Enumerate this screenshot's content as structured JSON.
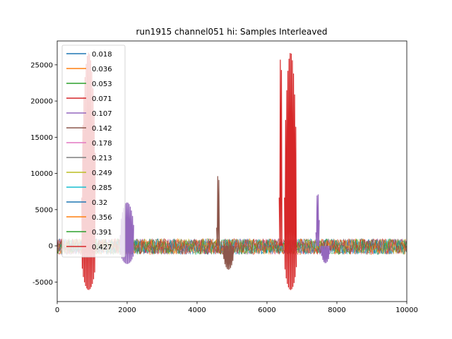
{
  "chart_data": {
    "type": "line",
    "title": "run1915 channel051 hi: Samples Interleaved",
    "xlabel": "",
    "ylabel": "",
    "xlim": [
      0,
      10000
    ],
    "ylim": [
      -7700,
      28300
    ],
    "xticks": [
      0,
      2000,
      4000,
      6000,
      8000,
      10000
    ],
    "yticks": [
      -5000,
      0,
      5000,
      10000,
      15000,
      20000,
      25000
    ],
    "grid": false,
    "legend_placement": "upper-left",
    "noise_band": [
      -1200,
      1000
    ],
    "series": [
      {
        "name": "0.018",
        "color": "#1f77b4"
      },
      {
        "name": "0.036",
        "color": "#ff7f0e"
      },
      {
        "name": "0.053",
        "color": "#2ca02c"
      },
      {
        "name": "0.071",
        "color": "#d62728"
      },
      {
        "name": "0.107",
        "color": "#9467bd"
      },
      {
        "name": "0.142",
        "color": "#8c564b"
      },
      {
        "name": "0.178",
        "color": "#e377c2"
      },
      {
        "name": "0.213",
        "color": "#7f7f7f"
      },
      {
        "name": "0.249",
        "color": "#bcbd22"
      },
      {
        "name": "0.285",
        "color": "#17becf"
      },
      {
        "name": "0.32",
        "color": "#1f77b4"
      },
      {
        "name": "0.356",
        "color": "#ff7f0e"
      },
      {
        "name": "0.391",
        "color": "#2ca02c"
      },
      {
        "name": "0.427",
        "color": "#d62728"
      }
    ],
    "features": [
      {
        "series": "0.427",
        "x": [
          700,
          1100
        ],
        "ymin": -6100,
        "ymax": 26700
      },
      {
        "series": "0.107",
        "x": [
          1800,
          2200
        ],
        "ymin": -2500,
        "ymax": 6000
      },
      {
        "series": "0.142",
        "x": [
          4560,
          4650
        ],
        "ymin": 0,
        "ymax": 10000
      },
      {
        "series": "0.142",
        "x": [
          4750,
          5050
        ],
        "ymin": -3300,
        "ymax": 0
      },
      {
        "series": "0.427",
        "x": [
          6350,
          6440
        ],
        "ymin": 0,
        "ymax": 26700
      },
      {
        "series": "0.427",
        "x": [
          6500,
          6850
        ],
        "ymin": -6100,
        "ymax": 26700
      },
      {
        "series": "0.107",
        "x": [
          7400,
          7500
        ],
        "ymin": 0,
        "ymax": 7400
      },
      {
        "series": "0.107",
        "x": [
          7550,
          7800
        ],
        "ymin": -2400,
        "ymax": 0
      }
    ]
  }
}
